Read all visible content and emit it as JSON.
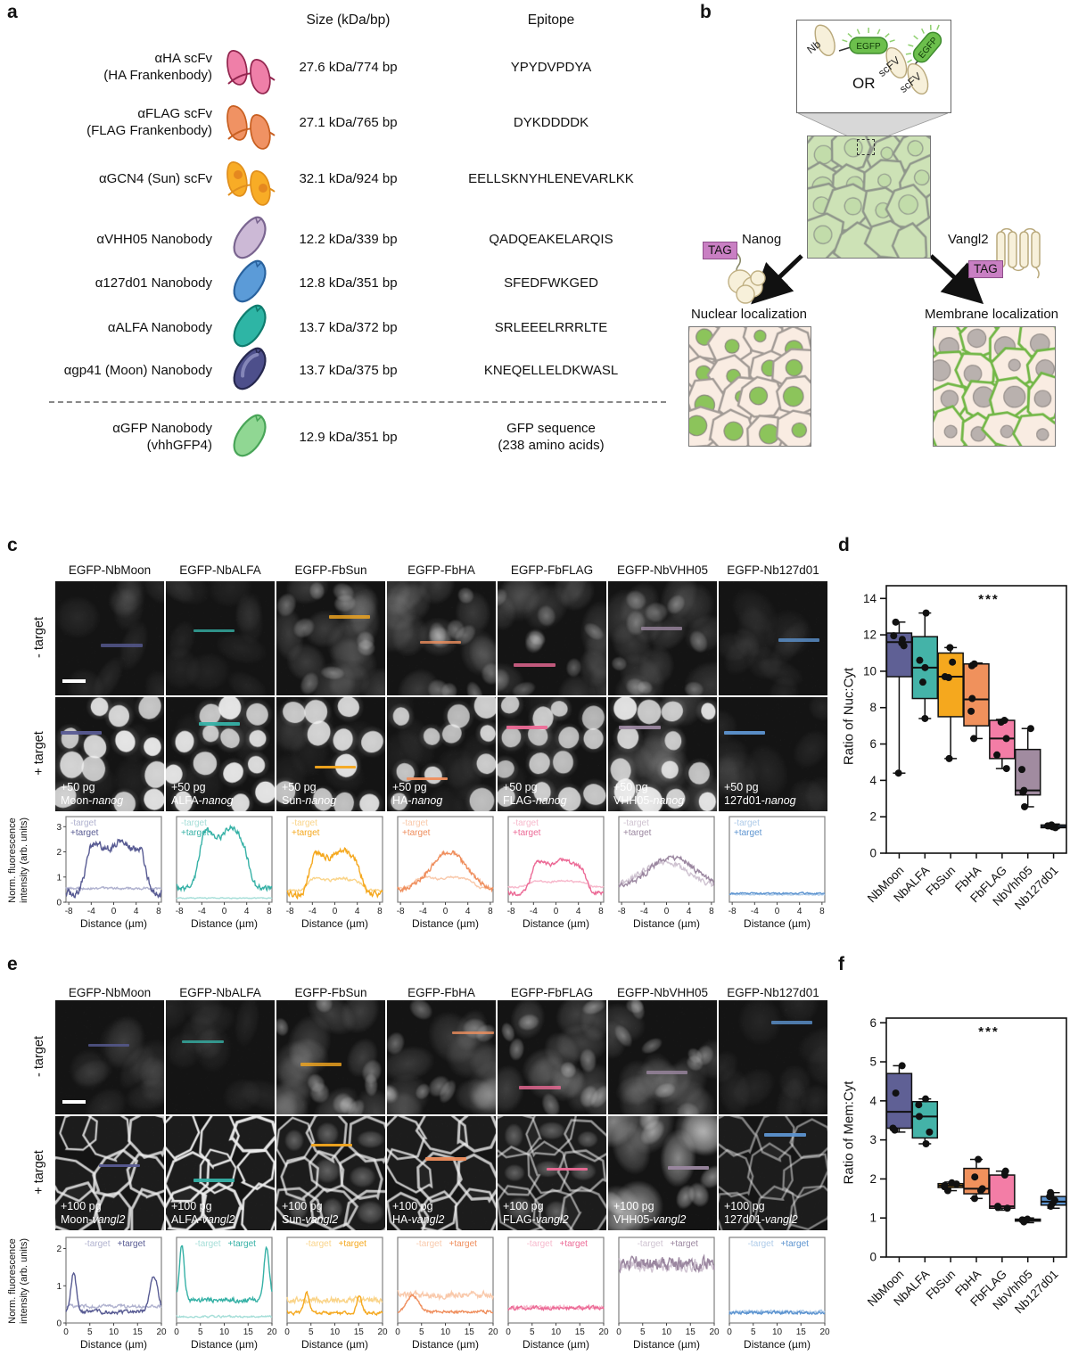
{
  "panel_a": {
    "label": "a",
    "headers": {
      "size": "Size (kDa/bp)",
      "epitope": "Epitope"
    },
    "rows": [
      {
        "name": [
          "αHA scFv",
          "(HA Frankenbody)"
        ],
        "icon": "scfv",
        "fill": "#ef7fa8",
        "stroke": "#93264f",
        "size": "27.6 kDa/774 bp",
        "epitope": [
          "YPYDVPDYA"
        ]
      },
      {
        "name": [
          "αFLAG scFv",
          "(FLAG Frankenbody)"
        ],
        "icon": "scfv",
        "fill": "#f09263",
        "stroke": "#c85f21",
        "size": "27.1 kDa/765 bp",
        "epitope": [
          "DYKDDDDK"
        ]
      },
      {
        "name": [
          "αGCN4 (Sun) scFv"
        ],
        "icon": "scfv-sun",
        "fill": "#f8ac26",
        "stroke": "#e08f1d",
        "size": "32.1 kDa/924 bp",
        "epitope": [
          "EELLSKNYHLENEVARLKK"
        ]
      },
      {
        "name": [
          "αVHH05 Nanobody"
        ],
        "icon": "nb",
        "fill": "#ccb9d6",
        "stroke": "#7a6590",
        "size": "12.2 kDa/339 bp",
        "epitope": [
          "QADQEAKELARQIS"
        ]
      },
      {
        "name": [
          "α127d01 Nanobody"
        ],
        "icon": "nb",
        "fill": "#5b9bd8",
        "stroke": "#29629e",
        "size": "12.8 kDa/351 bp",
        "epitope": [
          "SFEDFWKGED"
        ]
      },
      {
        "name": [
          "αALFA Nanobody"
        ],
        "icon": "nb",
        "fill": "#2eb5a5",
        "stroke": "#0f7c6e",
        "size": "13.7 kDa/372 bp",
        "epitope": [
          "SRLEEELRRRLTE"
        ]
      },
      {
        "name": [
          "αgp41 (Moon) Nanobody"
        ],
        "icon": "nb-moon",
        "fill": "#4d4f8b",
        "stroke": "#26284f",
        "size": "13.7 kDa/375 bp",
        "epitope": [
          "KNEQELLELDKWASL"
        ]
      },
      {
        "name": [
          "αGFP Nanobody",
          "(vhhGFP4)"
        ],
        "icon": "nb",
        "fill": "#90d793",
        "stroke": "#49a558",
        "size": "12.9 kDa/351 bp",
        "epitope": [
          "GFP sequence",
          "(238 amino acids)"
        ]
      }
    ]
  },
  "panel_b": {
    "label": "b",
    "nb": "Nb",
    "egfp": "EGFP",
    "or": "OR",
    "scfv": "scFV",
    "tag": "TAG",
    "nanog": "Nanog",
    "vangl2": "Vangl2",
    "nuclear": "Nuclear localization",
    "membrane": "Membrane localization"
  },
  "panel_c": {
    "label": "c",
    "columns": [
      "EGFP-NbMoon",
      "EGFP-NbALFA",
      "EGFP-FbSun",
      "EGFP-FbHA",
      "EGFP-FbFLAG",
      "EGFP-NbVHH05",
      "EGFP-Nb127d01"
    ],
    "row_labels": [
      "- target",
      "+ target"
    ],
    "dose": "+50 pg",
    "constructs": [
      {
        "name": "Moon-",
        "gene": "nanog"
      },
      {
        "name": "ALFA-",
        "gene": "nanog"
      },
      {
        "name": "Sun-",
        "gene": "nanog"
      },
      {
        "name": "HA-",
        "gene": "nanog"
      },
      {
        "name": "FLAG-",
        "gene": "nanog"
      },
      {
        "name": "VHH05-",
        "gene": "nanog"
      },
      {
        "name": "127d01-",
        "gene": "nanog"
      }
    ],
    "profiles": {
      "type": "line",
      "ylabel": [
        "Norm. fluorescence",
        "intensity (arb. units)"
      ],
      "xlabel": "Distance (µm)",
      "xticks": [
        -8,
        -4,
        0,
        4,
        8
      ],
      "xlim": [
        -8.5,
        8.5
      ],
      "yticks": [
        0,
        1,
        2,
        3
      ],
      "ylim": [
        0,
        3.4
      ],
      "legend": [
        "-target",
        "+target"
      ],
      "series": [
        {
          "light": {
            "type": "flat",
            "level": 0.55,
            "noise": 0.14
          },
          "dark": {
            "type": "plateau",
            "base": 0.35,
            "top": 2.45,
            "from": -5.2,
            "to": 5.6,
            "noise": 0.5
          }
        },
        {
          "light": {
            "type": "flat",
            "level": 0.16,
            "noise": 0.06
          },
          "dark": {
            "type": "plateau",
            "base": 0.55,
            "top": 2.95,
            "from": -4.7,
            "to": 4.2,
            "noise": 0.35
          }
        },
        {
          "light": {
            "type": "plateau",
            "base": 0.45,
            "top": 0.95,
            "from": -5.2,
            "to": 4.8,
            "noise": 0.15
          },
          "dark": {
            "type": "plateau",
            "base": 0.3,
            "top": 2.05,
            "from": -4.7,
            "to": 4.6,
            "noise": 0.4
          }
        },
        {
          "light": {
            "type": "plateau",
            "base": 0.55,
            "top": 1.0,
            "from": -6,
            "to": 5,
            "noise": 0.12
          },
          "dark": {
            "type": "hump",
            "base": 0.45,
            "amp": 1.55,
            "center": 0.5,
            "width": 3.2,
            "noise": 0.3
          }
        },
        {
          "light": {
            "type": "plateau",
            "base": 0.6,
            "top": 0.85,
            "from": -5.2,
            "to": 5.6,
            "noise": 0.1
          },
          "dark": {
            "type": "plateau",
            "base": 0.35,
            "top": 1.7,
            "from": -4.6,
            "to": 5.2,
            "noise": 0.25
          }
        },
        {
          "light": {
            "type": "hump",
            "base": 0.55,
            "amp": 1.05,
            "center": -0.5,
            "width": 4.2,
            "noise": 0.3
          },
          "dark": {
            "type": "hump",
            "base": 0.55,
            "amp": 1.25,
            "center": 1.0,
            "width": 4.0,
            "noise": 0.35
          }
        },
        {
          "light": {
            "type": "flat",
            "level": 0.3,
            "noise": 0.07
          },
          "dark": {
            "type": "flat",
            "level": 0.35,
            "noise": 0.09
          }
        }
      ]
    }
  },
  "panel_d": {
    "label": "d",
    "chart_data": {
      "type": "box",
      "ylabel": "Ratio of Nuc:Cyt",
      "ylim": [
        0,
        14.7
      ],
      "yticks": [
        0,
        2,
        4,
        6,
        8,
        10,
        12,
        14
      ],
      "annotation": "***",
      "categories": [
        "NbMoon",
        "NbALFA",
        "FbSun",
        "FbHA",
        "FbFLAG",
        "NbVhh05",
        "Nb127d01"
      ],
      "series": [
        {
          "whislo": 4.4,
          "q1": 9.7,
          "med": 11.6,
          "q3": 12.1,
          "whishi": 12.7,
          "points": [
            4.4,
            11.4,
            11.55,
            11.75,
            11.95,
            12.7
          ],
          "color": "#5f6095"
        },
        {
          "whislo": 7.4,
          "q1": 8.5,
          "med": 10.2,
          "q3": 11.9,
          "whishi": 13.2,
          "points": [
            7.4,
            9.4,
            10.2,
            10.6,
            13.2
          ],
          "color": "#44b3a8"
        },
        {
          "whislo": 5.2,
          "q1": 7.5,
          "med": 9.7,
          "q3": 11.0,
          "whishi": 11.3,
          "points": [
            5.2,
            9.65,
            9.7,
            10.5,
            11.3
          ],
          "color": "#f5a81e"
        },
        {
          "whislo": 6.3,
          "q1": 7.0,
          "med": 8.45,
          "q3": 10.4,
          "whishi": 10.45,
          "points": [
            6.3,
            7.8,
            8.5,
            10.3,
            10.4
          ],
          "color": "#f0915c"
        },
        {
          "whislo": 4.65,
          "q1": 5.2,
          "med": 6.3,
          "q3": 7.3,
          "whishi": 7.35,
          "points": [
            4.65,
            5.4,
            6.3,
            7.2,
            7.3
          ],
          "color": "#f37da6"
        },
        {
          "whislo": 2.55,
          "q1": 3.2,
          "med": 3.45,
          "q3": 5.7,
          "whishi": 6.85,
          "points": [
            2.55,
            3.35,
            3.45,
            4.6,
            6.85
          ],
          "color": "#a18ba0"
        },
        {
          "whislo": 1.35,
          "q1": 1.4,
          "med": 1.45,
          "q3": 1.55,
          "whishi": 1.6,
          "points": [
            1.4,
            1.45,
            1.5,
            1.55
          ],
          "color": "#5d94d0"
        }
      ]
    }
  },
  "panel_e": {
    "label": "e",
    "columns": [
      "EGFP-NbMoon",
      "EGFP-NbALFA",
      "EGFP-FbSun",
      "EGFP-FbHA",
      "EGFP-FbFLAG",
      "EGFP-NbVHH05",
      "EGFP-Nb127d01"
    ],
    "row_labels": [
      "- target",
      "+ target"
    ],
    "dose": "+100 pg",
    "constructs": [
      {
        "name": "Moon-",
        "gene": "vangl2"
      },
      {
        "name": "ALFA-",
        "gene": "vangl2"
      },
      {
        "name": "Sun-",
        "gene": "vangl2"
      },
      {
        "name": "HA-",
        "gene": "vangl2"
      },
      {
        "name": "FLAG-",
        "gene": "vangl2"
      },
      {
        "name": "VHH05-",
        "gene": "vangl2"
      },
      {
        "name": "127d01-",
        "gene": "vangl2"
      }
    ],
    "profiles": {
      "type": "line",
      "ylabel": [
        "Norm. fluorescence",
        "intensity (arb. units)"
      ],
      "xlabel": "Distance (µm)",
      "xticks": [
        0,
        5,
        10,
        15,
        20
      ],
      "xlim": [
        0,
        20
      ],
      "yticks": [
        0,
        1,
        2
      ],
      "ylim": [
        0,
        2.3
      ],
      "legend": [
        "-target",
        "+target"
      ],
      "series": [
        {
          "light": {
            "type": "flat",
            "level": 0.45,
            "noise": 0.14
          },
          "dark": {
            "type": "peaks",
            "base": 0.3,
            "noise": 0.16,
            "peaks": [
              {
                "x": 1.5,
                "h": 1.1,
                "w": 0.55
              },
              {
                "x": 18.3,
                "h": 1.0,
                "w": 0.8
              }
            ]
          }
        },
        {
          "light": {
            "type": "flat",
            "level": 0.17,
            "noise": 0.08
          },
          "dark": {
            "type": "peaks",
            "base": 0.62,
            "noise": 0.2,
            "peaks": [
              {
                "x": 1.0,
                "h": 1.5,
                "w": 0.5
              },
              {
                "x": 18.8,
                "h": 1.45,
                "w": 0.55
              }
            ]
          }
        },
        {
          "light": {
            "type": "flat",
            "level": 0.62,
            "noise": 0.24
          },
          "dark": {
            "type": "peaks",
            "base": 0.27,
            "noise": 0.14,
            "peaks": [
              {
                "x": 4,
                "h": 0.55,
                "w": 0.5
              },
              {
                "x": 15,
                "h": 0.5,
                "w": 0.5
              }
            ]
          }
        },
        {
          "light": {
            "type": "flat",
            "level": 0.75,
            "noise": 0.28
          },
          "dark": {
            "type": "peaks",
            "base": 0.3,
            "noise": 0.12,
            "peaks": [
              {
                "x": 3,
                "h": 0.45,
                "w": 1.2
              }
            ]
          }
        },
        {
          "light": {
            "type": "flat",
            "level": 0.42,
            "noise": 0.16
          },
          "dark": {
            "type": "flat",
            "level": 0.4,
            "noise": 0.16
          }
        },
        {
          "light": {
            "type": "flat",
            "level": 1.55,
            "noise": 0.5
          },
          "dark": {
            "type": "flat",
            "level": 1.6,
            "noise": 0.55
          }
        },
        {
          "light": {
            "type": "flat",
            "level": 0.3,
            "noise": 0.13
          },
          "dark": {
            "type": "flat",
            "level": 0.28,
            "noise": 0.13
          }
        }
      ]
    }
  },
  "panel_f": {
    "label": "f",
    "chart_data": {
      "type": "box",
      "ylabel": "Ratio of Mem:Cyt",
      "ylim": [
        0,
        6.12
      ],
      "yticks": [
        0,
        1,
        2,
        3,
        4,
        5,
        6
      ],
      "annotation": "***",
      "categories": [
        "NbMoon",
        "NbALFA",
        "FbSun",
        "FbHA",
        "FbFLAG",
        "NbVhh05",
        "Nb127d01"
      ],
      "series": [
        {
          "whislo": 3.2,
          "q1": 3.3,
          "med": 3.72,
          "q3": 4.7,
          "whishi": 4.9,
          "points": [
            3.25,
            3.3,
            4.2,
            4.9
          ],
          "color": "#5f6095"
        },
        {
          "whislo": 2.9,
          "q1": 3.05,
          "med": 3.6,
          "q3": 3.98,
          "whishi": 4.05,
          "points": [
            2.9,
            3.2,
            3.6,
            3.9,
            4.05
          ],
          "color": "#44b3a8"
        },
        {
          "whislo": 1.7,
          "q1": 1.78,
          "med": 1.83,
          "q3": 1.88,
          "whishi": 1.92,
          "points": [
            1.7,
            1.8,
            1.83,
            1.87,
            1.9
          ],
          "color": "#f5a81e"
        },
        {
          "whislo": 1.5,
          "q1": 1.62,
          "med": 1.75,
          "q3": 2.27,
          "whishi": 2.5,
          "points": [
            1.5,
            1.7,
            1.75,
            2.05,
            2.5
          ],
          "color": "#f0915c"
        },
        {
          "whislo": 1.2,
          "q1": 1.25,
          "med": 1.3,
          "q3": 2.1,
          "whishi": 2.2,
          "points": [
            1.25,
            1.27,
            1.3,
            2.1,
            2.2
          ],
          "color": "#f37da6"
        },
        {
          "whislo": 0.88,
          "q1": 0.92,
          "med": 0.95,
          "q3": 0.97,
          "whishi": 1.0,
          "points": [
            0.9,
            0.94,
            0.95,
            0.97
          ],
          "color": "#a18ba0"
        },
        {
          "whislo": 1.25,
          "q1": 1.33,
          "med": 1.42,
          "q3": 1.55,
          "whishi": 1.65,
          "points": [
            1.3,
            1.38,
            1.45,
            1.55,
            1.65
          ],
          "color": "#5d94d0"
        }
      ]
    }
  },
  "probe_colors": [
    {
      "id": "moon",
      "dark": "#585b93",
      "light": "#b0b2cf"
    },
    {
      "id": "alfa",
      "dark": "#36b1a6",
      "light": "#a5ded8"
    },
    {
      "id": "sun",
      "dark": "#f5a81e",
      "light": "#fad489"
    },
    {
      "id": "ha",
      "dark": "#ef8e5d",
      "light": "#f9c9ab"
    },
    {
      "id": "flag",
      "dark": "#ec6a96",
      "light": "#f7b9cc"
    },
    {
      "id": "vhh05",
      "dark": "#9b87a0",
      "light": "#cfc3d1"
    },
    {
      "id": "d127",
      "dark": "#5d94d0",
      "light": "#aecbe9"
    }
  ]
}
